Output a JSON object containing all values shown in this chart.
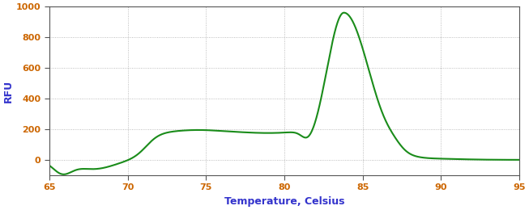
{
  "title": "",
  "xlabel": "Temperature, Celsius",
  "ylabel": "RFU",
  "xlim": [
    65,
    95
  ],
  "ylim": [
    -100,
    1000
  ],
  "xticks": [
    65,
    70,
    75,
    80,
    85,
    90,
    95
  ],
  "yticks": [
    0,
    200,
    400,
    600,
    800,
    1000
  ],
  "line_color": "#1a8c1a",
  "line_width": 1.5,
  "bg_color": "#ffffff",
  "grid_color": "#888888",
  "axis_label_color": "#3333cc",
  "tick_label_color": "#cc6600",
  "xlabel_fontsize": 9,
  "ylabel_fontsize": 9,
  "tick_fontsize": 8
}
